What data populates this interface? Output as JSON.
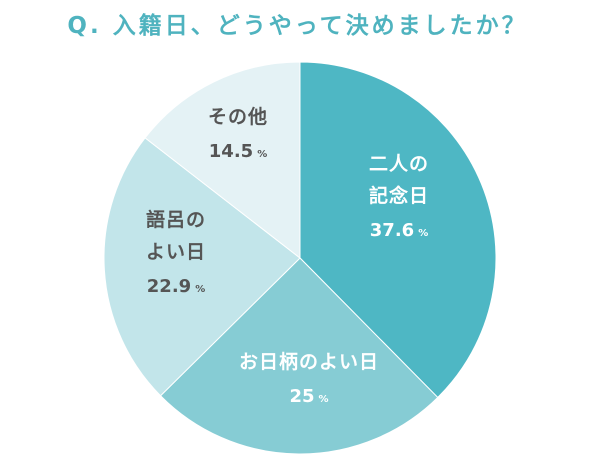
{
  "title": "Q. 入籍日、どうやって決めましたか？",
  "colors": {
    "title": "#4fb3bf",
    "label_dark": "#555555",
    "label_light": "#ffffff"
  },
  "chart_data": {
    "type": "pie",
    "title": "Q. 入籍日、どうやって決めましたか？",
    "unit": "%",
    "slices": [
      {
        "label_lines": [
          "二人の",
          "記念日"
        ],
        "value": 37.6,
        "value_text": "37.6",
        "color": "#4eb7c4",
        "text_color": "#ffffff"
      },
      {
        "label_lines": [
          "お日柄のよい日"
        ],
        "value": 25,
        "value_text": "25",
        "color": "#86ccd4",
        "text_color": "#ffffff"
      },
      {
        "label_lines": [
          "語呂の",
          "よい日"
        ],
        "value": 22.9,
        "value_text": "22.9",
        "color": "#c2e5ea",
        "text_color": "#555555"
      },
      {
        "label_lines": [
          "その他"
        ],
        "value": 14.5,
        "value_text": "14.5",
        "color": "#e4f2f5",
        "text_color": "#555555"
      }
    ]
  }
}
